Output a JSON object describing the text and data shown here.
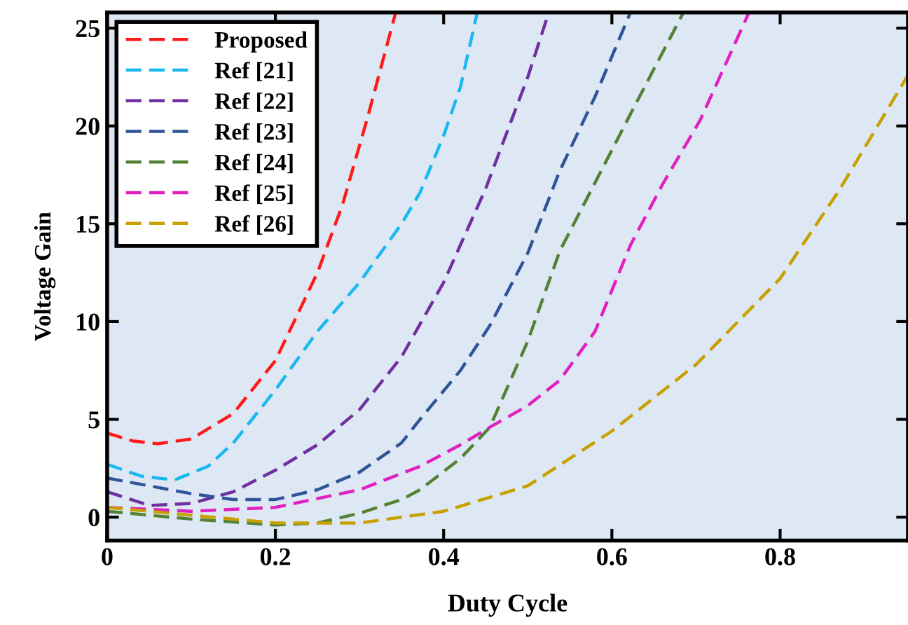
{
  "chart_data": {
    "type": "line",
    "xlabel": "Duty Cycle",
    "ylabel": "Voltage Gain",
    "xlim": [
      0,
      0.952
    ],
    "ylim": [
      -1.2,
      25.8
    ],
    "xticks": [
      0,
      0.2,
      0.4,
      0.6,
      0.8
    ],
    "yticks": [
      0,
      5,
      10,
      15,
      20,
      25
    ],
    "line_style": "dashed",
    "legend": "top left",
    "series": [
      {
        "name": "Proposed",
        "color": "#ff1a1a",
        "x": [
          0,
          0.03,
          0.06,
          0.1,
          0.15,
          0.2,
          0.25,
          0.28,
          0.31,
          0.343
        ],
        "values": [
          4.3,
          3.9,
          3.75,
          4.0,
          5.3,
          8,
          12.5,
          16,
          20.5,
          25.8
        ]
      },
      {
        "name": "Ref [21]",
        "color": "#1ab8f0",
        "x": [
          0,
          0.04,
          0.08,
          0.12,
          0.15,
          0.2,
          0.25,
          0.3,
          0.35,
          0.372,
          0.4,
          0.42,
          0.44
        ],
        "values": [
          2.7,
          2.1,
          1.9,
          2.6,
          3.8,
          6.5,
          9.5,
          12,
          15,
          16.6,
          19.5,
          22,
          25.8
        ]
      },
      {
        "name": "Ref [22]",
        "color": "#7030a0",
        "x": [
          0,
          0.05,
          0.1,
          0.15,
          0.2,
          0.25,
          0.3,
          0.35,
          0.4,
          0.45,
          0.5,
          0.525
        ],
        "values": [
          1.3,
          0.6,
          0.7,
          1.3,
          2.4,
          3.7,
          5.5,
          8.2,
          12,
          16.8,
          22.5,
          25.8
        ]
      },
      {
        "name": "Ref [23]",
        "color": "#2f5597",
        "x": [
          0,
          0.05,
          0.1,
          0.15,
          0.2,
          0.25,
          0.3,
          0.35,
          0.372,
          0.42,
          0.455,
          0.5,
          0.538,
          0.58,
          0.622
        ],
        "values": [
          2.0,
          1.6,
          1.2,
          0.9,
          0.9,
          1.4,
          2.3,
          3.8,
          5,
          7.5,
          9.8,
          13.5,
          17.7,
          21.5,
          25.8
        ]
      },
      {
        "name": "Ref [24]",
        "color": "#548235",
        "x": [
          0,
          0.1,
          0.2,
          0.25,
          0.3,
          0.35,
          0.372,
          0.42,
          0.455,
          0.5,
          0.538,
          0.622,
          0.685
        ],
        "values": [
          0.3,
          -0.1,
          -0.4,
          -0.3,
          0.2,
          0.9,
          1.4,
          3,
          4.6,
          9,
          13.6,
          20.6,
          25.8
        ]
      },
      {
        "name": "Ref [25]",
        "color": "#e020c0",
        "x": [
          0,
          0.1,
          0.2,
          0.3,
          0.372,
          0.42,
          0.455,
          0.5,
          0.538,
          0.58,
          0.622,
          0.66,
          0.705,
          0.763
        ],
        "values": [
          0.5,
          0.3,
          0.5,
          1.4,
          2.6,
          3.7,
          4.6,
          5.7,
          7,
          9.5,
          13.9,
          17,
          20.3,
          25.8
        ]
      },
      {
        "name": "Ref [26]",
        "color": "#c8a000",
        "x": [
          0,
          0.1,
          0.2,
          0.3,
          0.4,
          0.5,
          0.6,
          0.7,
          0.8,
          0.87,
          0.952
        ],
        "values": [
          0.5,
          0.1,
          -0.3,
          -0.3,
          0.3,
          1.6,
          4.4,
          7.8,
          12.2,
          16.7,
          22.6
        ]
      }
    ]
  }
}
